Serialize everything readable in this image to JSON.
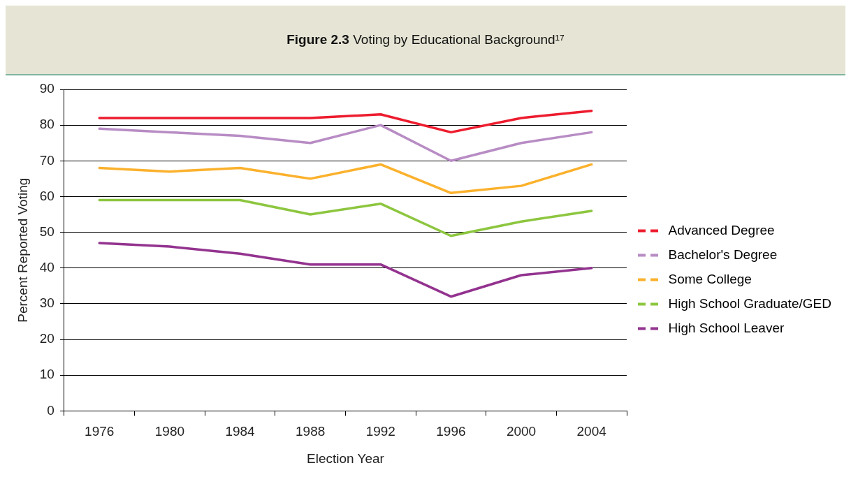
{
  "chart_data": {
    "type": "line",
    "title": "Figure 2.3 Voting by Educational Background¹⁷",
    "xlabel": "Election Year",
    "ylabel": "Percent Reported Voting",
    "categories": [
      "1976",
      "1980",
      "1984",
      "1988",
      "1992",
      "1996",
      "2000",
      "2004"
    ],
    "series": [
      {
        "name": "Advanced Degree",
        "color": "#ed1c2e",
        "values": [
          82,
          82,
          82,
          82,
          83,
          78,
          82,
          84
        ]
      },
      {
        "name": "Bachelor's Degree",
        "color": "#b88cc4",
        "values": [
          79,
          78,
          77,
          75,
          80,
          70,
          75,
          78
        ]
      },
      {
        "name": "Some College",
        "color": "#fbb12c",
        "values": [
          68,
          67,
          68,
          65,
          69,
          61,
          63,
          69
        ]
      },
      {
        "name": "High School Graduate/GED",
        "color": "#8dc63f",
        "values": [
          59,
          59,
          59,
          55,
          58,
          49,
          53,
          56
        ]
      },
      {
        "name": "High School Leaver",
        "color": "#93338f",
        "values": [
          47,
          46,
          44,
          41,
          41,
          32,
          38,
          40
        ]
      }
    ],
    "ylim": [
      0,
      90
    ],
    "yticks": [
      0,
      10,
      20,
      30,
      40,
      50,
      60,
      70,
      80,
      90
    ],
    "grid": "y",
    "legend": "right",
    "marker": "none",
    "line_style": "solid"
  }
}
